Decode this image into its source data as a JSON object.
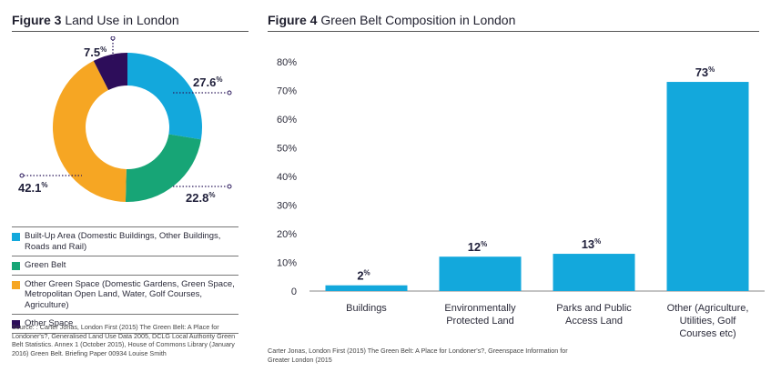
{
  "figure3": {
    "label": "Figure 3",
    "title": "Land Use in London",
    "source": "Source: : Carter Jonas, London First (2015) The Green Belt: A Place for Londoner's?, Generalised Land Use Data 2005, DCLG Local Authority Green Belt Statistics. Annex 1 (October 2015), House of Commons Library (January 2016) Green Belt. Briefing Paper 00934 Louise Smith"
  },
  "figure4": {
    "label": "Figure 4",
    "title": "Green Belt Composition in London",
    "source": "Carter Jonas, London First (2015) The Green Belt: A Place for Londoner's?, Greenspace Information for Greater London (2015"
  },
  "chart_data": [
    {
      "type": "pie",
      "title": "Land Use in London",
      "donut": true,
      "slices": [
        {
          "label": "Built-Up Area (Domestic Buildings, Other Buildings, Roads and Rail)",
          "value": 27.6,
          "display": "27.6",
          "color": "#13a8dc"
        },
        {
          "label": "Green Belt",
          "value": 22.8,
          "display": "22.8",
          "color": "#17a576"
        },
        {
          "label": "Other Green Space (Domestic Gardens, Green Space, Metropolitan Open Land, Water, Golf Courses, Agriculture)",
          "value": 42.1,
          "display": "42.1",
          "color": "#f6a623"
        },
        {
          "label": "Other Space",
          "value": 7.5,
          "display": "7.5",
          "color": "#2d0d5a"
        }
      ],
      "unit": "%",
      "legend_position": "bottom"
    },
    {
      "type": "bar",
      "title": "Green Belt Composition in London",
      "categories": [
        "Buildings",
        "Environmentally Protected Land",
        "Parks and Public Access Land",
        "Other (Agriculture, Utilities, Golf Courses etc)"
      ],
      "category_lines": [
        [
          "Buildings"
        ],
        [
          "Environmentally",
          "Protected Land"
        ],
        [
          "Parks and Public",
          "Access Land"
        ],
        [
          "Other (Agriculture,",
          "Utilities, Golf",
          "Courses etc)"
        ]
      ],
      "values": [
        2,
        12,
        13,
        73
      ],
      "unit": "%",
      "ylim": [
        0,
        80
      ],
      "yticks": [
        "0",
        "10%",
        "20%",
        "30%",
        "40%",
        "50%",
        "60%",
        "70%",
        "80%"
      ],
      "grid": false,
      "color": "#13a8dc"
    }
  ]
}
